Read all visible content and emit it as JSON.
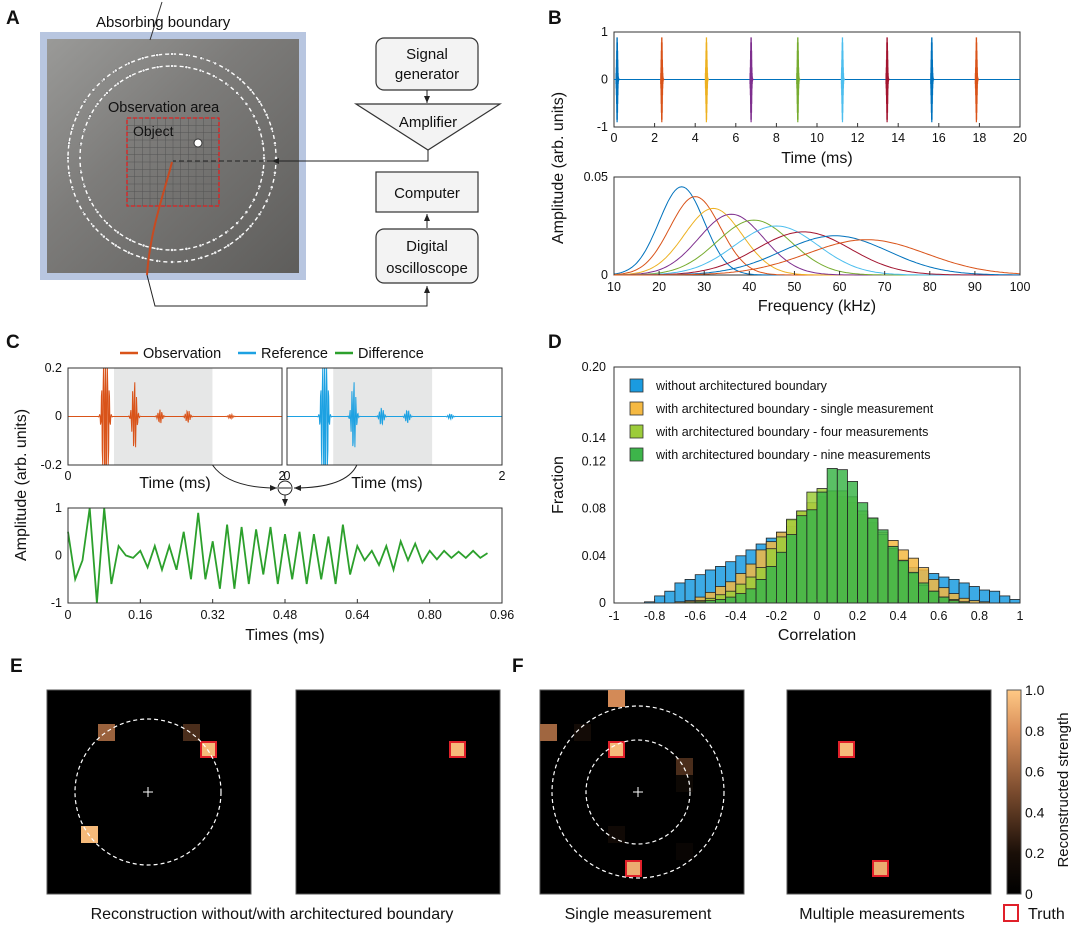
{
  "panel_labels": {
    "a": "A",
    "b": "B",
    "c": "C",
    "d": "D",
    "e": "E",
    "f": "F"
  },
  "panel_a": {
    "absorbing_boundary": "Absorbing boundary",
    "observation_area": "Observation area",
    "object": "Object",
    "signal_generator": [
      "Signal",
      "generator"
    ],
    "amplifier": "Amplifier",
    "computer": "Computer",
    "oscilloscope": [
      "Digital",
      "oscilloscope"
    ]
  },
  "colors": {
    "matlab": [
      "#0072BD",
      "#D95319",
      "#EDB120",
      "#7E2F8E",
      "#77AC30",
      "#4DBEEE",
      "#A2142F",
      "#0072BD",
      "#D95319"
    ],
    "observation": "#D95319",
    "reference": "#1DA1E2",
    "difference": "#2CA02C",
    "truth": "#E0202A"
  },
  "chart_data": [
    {
      "id": "B-time",
      "type": "line",
      "xlabel": "Time (ms)",
      "ylabel": "Amplitude (arb. units)",
      "xlim": [
        0,
        20
      ],
      "ylim": [
        -1,
        1
      ],
      "xticks": [
        0,
        2,
        4,
        6,
        8,
        10,
        12,
        14,
        16,
        18,
        20
      ],
      "yticks": [
        1,
        0,
        -1
      ],
      "pulse_times": [
        0.1,
        2.3,
        4.5,
        6.7,
        9.0,
        11.2,
        13.4,
        15.6,
        17.8
      ],
      "pulse_amplitude": 0.9
    },
    {
      "id": "B-freq",
      "type": "line",
      "xlabel": "Frequency (kHz)",
      "xlim": [
        10,
        100
      ],
      "ylim": [
        0,
        0.05
      ],
      "xticks": [
        10,
        20,
        30,
        40,
        50,
        60,
        70,
        80,
        90,
        100
      ],
      "yticks": [
        0.05,
        0
      ],
      "series": [
        {
          "center_khz": 25,
          "peak": 0.045
        },
        {
          "center_khz": 28,
          "peak": 0.04
        },
        {
          "center_khz": 32,
          "peak": 0.034
        },
        {
          "center_khz": 36,
          "peak": 0.031
        },
        {
          "center_khz": 41,
          "peak": 0.028
        },
        {
          "center_khz": 46,
          "peak": 0.025
        },
        {
          "center_khz": 52,
          "peak": 0.022
        },
        {
          "center_khz": 59,
          "peak": 0.02
        },
        {
          "center_khz": 66,
          "peak": 0.018
        }
      ]
    },
    {
      "id": "C-signals",
      "type": "line",
      "legend": [
        "Observation",
        "Reference",
        "Difference"
      ],
      "ylabel": "Amplitude (arb. units)",
      "top_xlabel": "Time (ms)",
      "top_xlim": [
        0,
        2
      ],
      "top_ylim": [
        -0.2,
        0.2
      ],
      "top_xticks": [
        "0",
        "2"
      ],
      "top_yticks": [
        "0.2",
        "0",
        "-0.2"
      ],
      "window_ms": [
        0.43,
        1.35
      ],
      "observation_packets": [
        [
          0.35,
          1.0
        ],
        [
          0.62,
          0.16
        ],
        [
          0.86,
          0.03
        ],
        [
          1.12,
          0.028
        ],
        [
          1.52,
          0.01
        ]
      ],
      "reference_packets": [
        [
          0.35,
          1.0
        ],
        [
          0.62,
          0.16
        ],
        [
          0.88,
          0.04
        ],
        [
          1.12,
          0.03
        ],
        [
          1.52,
          0.012
        ]
      ],
      "bottom_xlabel": "Times (ms)",
      "bottom_xlim": [
        0,
        0.96
      ],
      "bottom_ylim": [
        -1,
        1
      ],
      "bottom_xticks": [
        "0",
        "0.16",
        "0.32",
        "0.48",
        "0.64",
        "0.80",
        "0.96"
      ],
      "bottom_yticks": [
        "1",
        "0",
        "-1"
      ],
      "difference_dt_ms": 0.016,
      "difference": [
        0.5,
        -0.5,
        -0.1,
        1.0,
        -1.0,
        1.0,
        -0.6,
        0.2,
        0.0,
        -0.05,
        0.1,
        -0.25,
        0.2,
        -0.3,
        0.2,
        -0.3,
        0.5,
        -0.5,
        0.9,
        -0.5,
        0.3,
        -0.7,
        0.65,
        -0.7,
        0.6,
        -0.6,
        0.55,
        -0.4,
        0.6,
        -0.6,
        0.45,
        -0.5,
        0.5,
        -0.6,
        0.45,
        -0.5,
        0.4,
        -0.6,
        0.65,
        -0.4,
        0.2,
        -0.1,
        0.1,
        -0.2,
        0.2,
        -0.3,
        0.3,
        -0.1,
        0.25,
        -0.15,
        0.1,
        -0.08,
        0.1,
        -0.05,
        0.08,
        -0.05,
        0.1,
        -0.05,
        0.05
      ]
    },
    {
      "id": "D-histogram",
      "type": "bar",
      "xlabel": "Correlation",
      "ylabel": "Fraction",
      "xlim": [
        -1,
        1
      ],
      "ylim": [
        0,
        0.2
      ],
      "bin_width": 0.05,
      "xticks": [
        "-1",
        "-0.8",
        "-0.6",
        "-0.4",
        "-0.2",
        "0",
        "0.2",
        "0.4",
        "0.6",
        "0.8",
        "1"
      ],
      "yticks": [
        "0.20",
        "0.14",
        "0.12",
        "0.08",
        "0.04",
        "0"
      ],
      "ytick_values": [
        0.2,
        0.14,
        0.12,
        0.08,
        0.04,
        0
      ],
      "legend_placement": "top-left",
      "series": [
        {
          "name": "without architectured boundary",
          "color": "#1A9BE0",
          "values": [
            0,
            0,
            0,
            0.001,
            0.006,
            0.01,
            0.017,
            0.02,
            0.024,
            0.028,
            0.031,
            0.035,
            0.04,
            0.045,
            0.05,
            0.055,
            0.06,
            0.065,
            0.068,
            0.07,
            0.07,
            0.068,
            0.065,
            0.06,
            0.055,
            0.05,
            0.045,
            0.04,
            0.037,
            0.03,
            0.028,
            0.025,
            0.022,
            0.02,
            0.017,
            0.014,
            0.011,
            0.01,
            0.006,
            0.003
          ]
        },
        {
          "name": "with architectured boundary - single measurement",
          "color": "#F5B942",
          "values": [
            0,
            0,
            0,
            0,
            0,
            0,
            0.001,
            0.002,
            0.005,
            0.009,
            0.014,
            0.018,
            0.025,
            0.033,
            0.045,
            0.052,
            0.06,
            0.07,
            0.078,
            0.085,
            0.09,
            0.095,
            0.09,
            0.085,
            0.075,
            0.068,
            0.06,
            0.053,
            0.045,
            0.038,
            0.03,
            0.02,
            0.013,
            0.008,
            0.004,
            0.002,
            0.001,
            0,
            0,
            0
          ]
        },
        {
          "name": "with architectured boundary - four measurements",
          "color": "#9CCC3A",
          "values": [
            0,
            0,
            0,
            0,
            0,
            0,
            0,
            0.001,
            0.002,
            0.004,
            0.007,
            0.01,
            0.016,
            0.022,
            0.03,
            0.046,
            0.056,
            0.071,
            0.078,
            0.094,
            0.097,
            0.095,
            0.095,
            0.09,
            0.078,
            0.072,
            0.058,
            0.046,
            0.035,
            0.025,
            0.015,
            0.01,
            0.005,
            0.003,
            0.001,
            0,
            0,
            0,
            0,
            0
          ]
        },
        {
          "name": "with architectured boundary - nine measurements",
          "color": "#3DB54A",
          "values": [
            0,
            0,
            0,
            0,
            0,
            0,
            0,
            0,
            0.001,
            0.002,
            0.003,
            0.005,
            0.008,
            0.012,
            0.02,
            0.031,
            0.043,
            0.058,
            0.074,
            0.079,
            0.094,
            0.114,
            0.113,
            0.103,
            0.085,
            0.072,
            0.062,
            0.048,
            0.036,
            0.026,
            0.017,
            0.01,
            0.005,
            0.002,
            0.001,
            0,
            0,
            0,
            0,
            0
          ]
        }
      ]
    },
    {
      "id": "EF-heatmaps",
      "type": "heatmap",
      "grid_size": 12,
      "colorbar_label": "Reconstructed strength",
      "colorbar_ticks": [
        "1.0",
        "0.8",
        "0.6",
        "0.4",
        "0.2",
        "0"
      ],
      "truth_label": "Truth",
      "captions": {
        "e": "Reconstruction without/with architectured boundary",
        "f_single": "Single measurement",
        "f_multiple": "Multiple measurements"
      },
      "maps": [
        {
          "name": "E-without",
          "cells": [
            [
              3,
              2,
              0.6,
              false
            ],
            [
              8,
              2,
              0.35,
              false
            ],
            [
              9,
              3,
              0.95,
              true
            ],
            [
              2,
              8,
              0.95,
              false
            ]
          ]
        },
        {
          "name": "E-with",
          "cells": [
            [
              9,
              3,
              0.95,
              true
            ]
          ]
        },
        {
          "name": "F-single",
          "cells": [
            [
              4,
              0,
              0.78,
              false
            ],
            [
              0,
              2,
              0.62,
              false
            ],
            [
              2,
              2,
              0.15,
              false
            ],
            [
              4,
              3,
              0.95,
              true
            ],
            [
              8,
              4,
              0.35,
              false
            ],
            [
              8,
              5,
              0.1,
              false
            ],
            [
              4,
              8,
              0.12,
              false
            ],
            [
              8,
              9,
              0.07,
              false
            ],
            [
              5,
              10,
              0.9,
              true
            ]
          ]
        },
        {
          "name": "F-multiple",
          "cells": [
            [
              3,
              3,
              0.95,
              true
            ],
            [
              5,
              10,
              0.9,
              true
            ]
          ]
        }
      ]
    }
  ]
}
